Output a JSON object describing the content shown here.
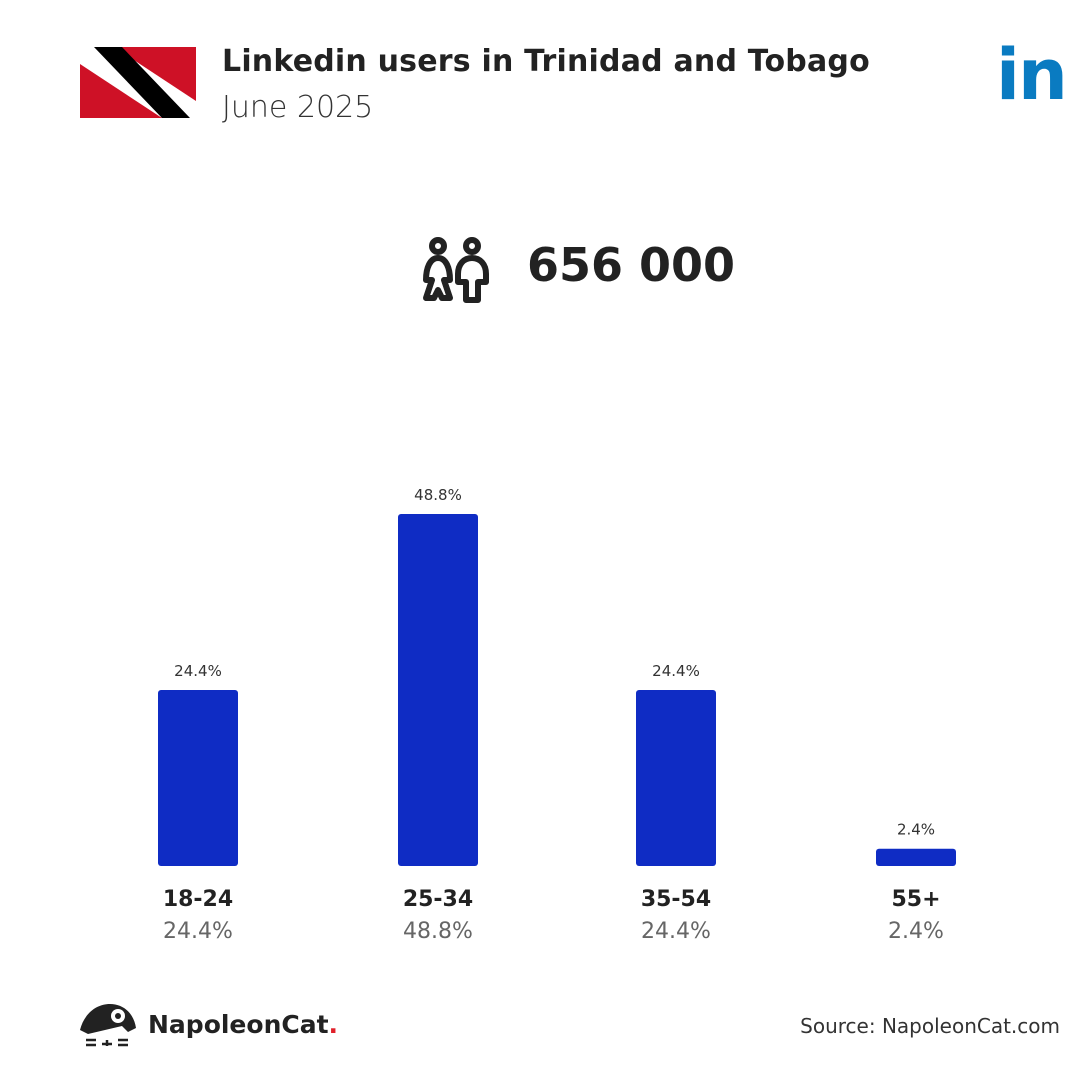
{
  "header": {
    "title": "Linkedin users in Trinidad and Tobago",
    "subtitle": "June 2025",
    "platform_logo": "in",
    "flag_icon": "trinidad-and-tobago-flag"
  },
  "summary": {
    "total_users": "656 000",
    "icon": "people-icon"
  },
  "chart_data": {
    "type": "bar",
    "categories": [
      "18-24",
      "25-34",
      "35-54",
      "55+"
    ],
    "values": [
      24.4,
      48.8,
      24.4,
      2.4
    ],
    "value_labels": [
      "24.4%",
      "48.8%",
      "24.4%",
      "2.4%"
    ],
    "unit": "%",
    "title": "",
    "xlabel": "",
    "ylabel": "",
    "ylim": [
      0,
      48.8
    ],
    "grid": false,
    "bar_color": "#0f2cc4"
  },
  "footer": {
    "brand": "NapoleonCat",
    "brand_dot": ".",
    "source": "Source: NapoleonCat.com"
  }
}
